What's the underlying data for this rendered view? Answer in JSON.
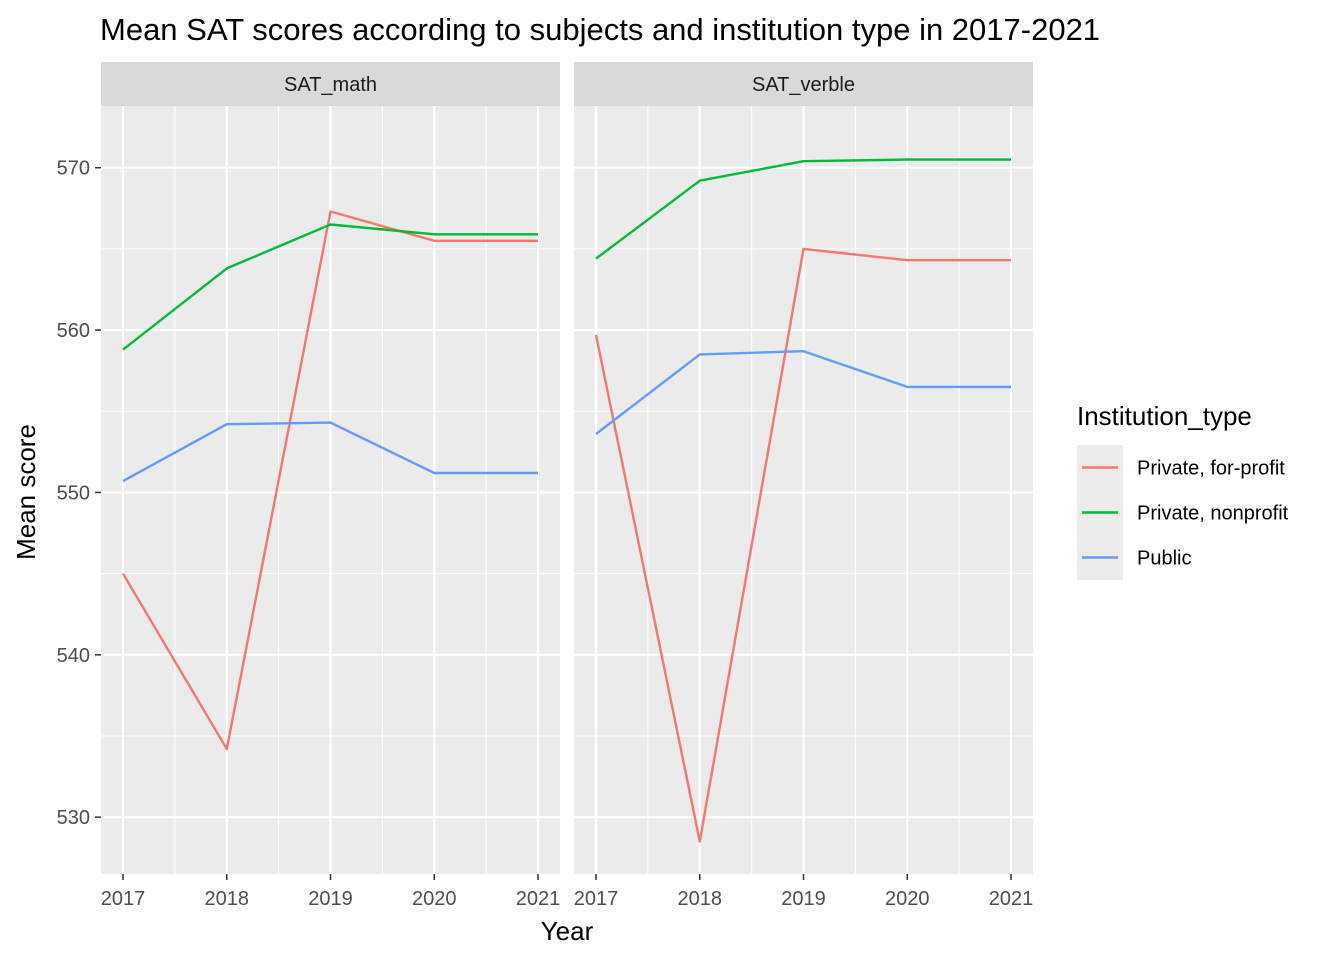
{
  "chart_data": {
    "type": "line",
    "title": "Mean SAT scores according to subjects and institution type in 2017-2021",
    "xlabel": "Year",
    "ylabel": "Mean score",
    "x": [
      2017,
      2018,
      2019,
      2020,
      2021
    ],
    "x_tick_labels": [
      "2017",
      "2018",
      "2019",
      "2020",
      "2021"
    ],
    "ylim": [
      526.5,
      573.8
    ],
    "y_ticks": [
      530,
      540,
      550,
      560,
      570
    ],
    "y_tick_labels": [
      "530",
      "540",
      "550",
      "560",
      "570"
    ],
    "grid": true,
    "legend": {
      "title": "Institution_type",
      "placement": "right",
      "entries": [
        {
          "label": "Private, for-profit",
          "color": "#F8766D"
        },
        {
          "label": "Private, nonprofit",
          "color": "#00BA38"
        },
        {
          "label": "Public",
          "color": "#619CFF"
        }
      ]
    },
    "facets": [
      {
        "strip_label": "SAT_math",
        "series": [
          {
            "name": "Private, for-profit",
            "color": "#F8766D",
            "values": [
              545.0,
              534.2,
              567.3,
              565.5,
              565.5
            ]
          },
          {
            "name": "Private, nonprofit",
            "color": "#00BA38",
            "values": [
              558.8,
              563.8,
              566.5,
              565.9,
              565.9
            ]
          },
          {
            "name": "Public",
            "color": "#619CFF",
            "values": [
              550.7,
              554.2,
              554.3,
              551.2,
              551.2
            ]
          }
        ]
      },
      {
        "strip_label": "SAT_verble",
        "series": [
          {
            "name": "Private, for-profit",
            "color": "#F8766D",
            "values": [
              559.7,
              528.5,
              565.0,
              564.3,
              564.3
            ]
          },
          {
            "name": "Private, nonprofit",
            "color": "#00BA38",
            "values": [
              564.4,
              569.2,
              570.4,
              570.5,
              570.5
            ]
          },
          {
            "name": "Public",
            "color": "#619CFF",
            "values": [
              553.6,
              558.5,
              558.7,
              556.5,
              556.5
            ]
          }
        ]
      }
    ]
  }
}
